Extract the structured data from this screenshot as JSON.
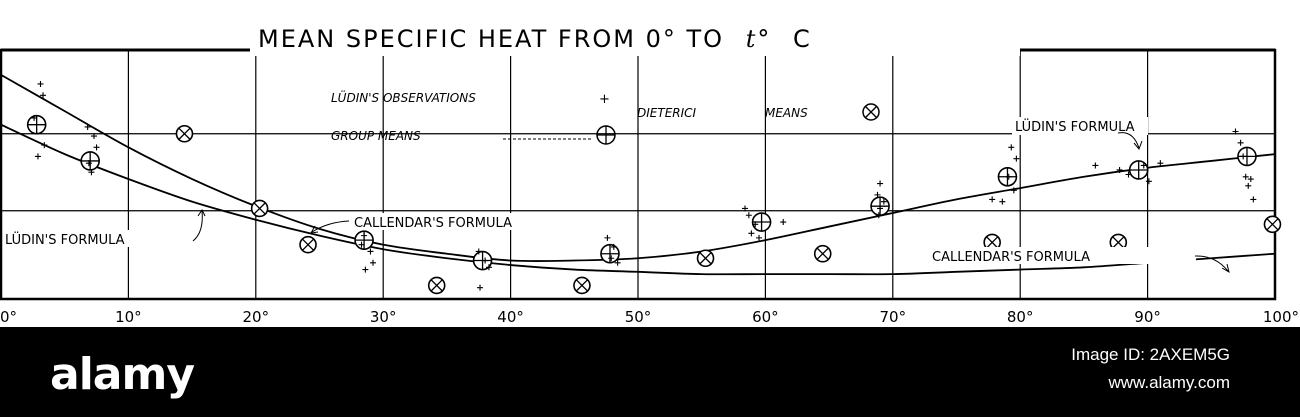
{
  "chart_data": {
    "type": "scatter",
    "title": "MEAN SPECIFIC HEAT FROM 0° TO",
    "title_var": "t°",
    "title_unit": "C",
    "x_ticks": [
      "0°",
      "10°",
      "20°",
      "30°",
      "40°",
      "50°",
      "60°",
      "70°",
      "80°",
      "90°",
      "100°"
    ],
    "xlim": [
      0,
      100
    ],
    "grid": true,
    "legend": {
      "ludin_obs": "LÜDIN'S OBSERVATIONS",
      "ludin_obs_marker": "+",
      "group_means": "GROUP MEANS",
      "dieterici": "DIETERICI",
      "dieterici_means": "MEANS"
    },
    "curve_labels": {
      "ludin_right": "LÜDIN'S FORMULA",
      "ludin_left": "LÜDIN'S FORMULA",
      "callendar_mid": "CALLENDAR'S FORMULA",
      "callendar_right": "CALLENDAR'S FORMULA"
    },
    "series": [
      {
        "name": "LÜDIN'S FORMULA",
        "kind": "curve",
        "x": [
          0,
          5,
          10,
          15,
          20,
          25,
          30,
          35,
          40,
          45,
          50,
          55,
          60,
          65,
          70,
          75,
          80,
          85,
          90,
          95,
          100
        ],
        "y": [
          1.0096,
          1.008,
          1.0064,
          1.005,
          1.0038,
          1.0028,
          1.0021,
          1.0017,
          1.0014,
          1.0014,
          1.0015,
          1.0018,
          1.0023,
          1.0029,
          1.0035,
          1.0041,
          1.0046,
          1.0051,
          1.0055,
          1.0058,
          1.0061
        ]
      },
      {
        "name": "CALLENDAR'S FORMULA",
        "kind": "curve",
        "x": [
          0,
          5,
          10,
          15,
          20,
          25,
          30,
          35,
          40,
          45,
          50,
          55,
          60,
          65,
          70,
          75,
          80,
          85,
          90,
          95,
          100
        ],
        "y": [
          1.0074,
          1.0061,
          1.005,
          1.004,
          1.0032,
          1.0025,
          1.0019,
          1.0015,
          1.0012,
          1.001,
          1.0009,
          1.0008,
          1.0008,
          1.0008,
          1.0008,
          1.0009,
          1.001,
          1.0011,
          1.0013,
          1.0015,
          1.0017
        ]
      },
      {
        "name": "GROUP MEANS",
        "kind": "circle-plus",
        "x": [
          2.8,
          7,
          28.5,
          37.8,
          47.8,
          59.7,
          69,
          79,
          89.3,
          97.8
        ],
        "y": [
          1.0074,
          1.0058,
          1.0023,
          1.0014,
          1.0017,
          1.0031,
          1.0038,
          1.0051,
          1.0054,
          1.006
        ]
      },
      {
        "name": "DIETERICI MEANS",
        "kind": "circle-x",
        "x": [
          14.4,
          20.3,
          24.1,
          34.2,
          45.6,
          55.3,
          64.5,
          77.8,
          87.7,
          99.8
        ],
        "y": [
          1.007,
          1.0037,
          1.0021,
          1.0003,
          1.0003,
          1.0015,
          1.0017,
          1.0022,
          1.0022,
          1.003
        ]
      },
      {
        "name": "LÜDIN'S OBSERVATIONS",
        "kind": "plus",
        "x": [
          3.1,
          3.3,
          2.6,
          3.4,
          2.9,
          6.8,
          7.3,
          7.5,
          6.9,
          7.1,
          28.5,
          28.3,
          29.0,
          29.2,
          28.6,
          37.5,
          38.0,
          38.3,
          37.6,
          47.6,
          48.1,
          47.9,
          48.4,
          58.4,
          58.7,
          59.2,
          58.9,
          59.5,
          61.4,
          69.0,
          68.8,
          69.3,
          69.0,
          68.9,
          77.8,
          78.6,
          79.1,
          79.5,
          79.7,
          79.3,
          85.9,
          87.8,
          88.5,
          89.7,
          90.1,
          91.0,
          96.9,
          97.3,
          97.5,
          97.7,
          97.9,
          98.1,
          98.3
        ],
        "y": [
          1.0092,
          1.0087,
          1.0077,
          1.0065,
          1.006,
          1.0073,
          1.0069,
          1.0064,
          1.0057,
          1.0053,
          1.0025,
          1.0021,
          1.0018,
          1.0013,
          1.001,
          1.0018,
          1.0014,
          1.0011,
          1.0002,
          1.0024,
          1.002,
          1.0015,
          1.0013,
          1.0037,
          1.0034,
          1.003,
          1.0026,
          1.0024,
          1.0031,
          1.0048,
          1.0043,
          1.004,
          1.0037,
          1.0034,
          1.0041,
          1.004,
          1.0051,
          1.0045,
          1.0059,
          1.0064,
          1.0056,
          1.0054,
          1.0052,
          1.0056,
          1.0049,
          1.0057,
          1.0071,
          1.0066,
          1.006,
          1.0051,
          1.0047,
          1.005,
          1.0041
        ]
      }
    ]
  },
  "watermark": {
    "logo": "alamy",
    "image_id": "Image ID: 2AXEM5G",
    "url": "www.alamy.com"
  }
}
